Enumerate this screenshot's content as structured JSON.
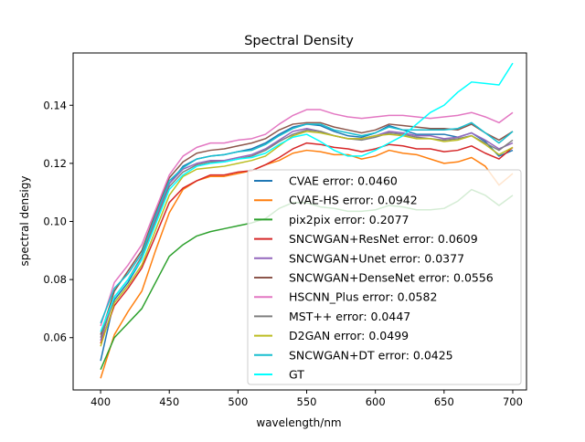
{
  "chart_data": {
    "type": "line",
    "title": "Spectral Density",
    "xlabel": "wavelength/nm",
    "ylabel": "spectral densigy",
    "xlim": [
      380,
      710
    ],
    "ylim": [
      0.042,
      0.158
    ],
    "x_ticks": [
      400,
      450,
      500,
      550,
      600,
      650,
      700
    ],
    "y_ticks": [
      0.06,
      0.08,
      0.1,
      0.12,
      0.14
    ],
    "x_tick_labels": [
      "400",
      "450",
      "500",
      "550",
      "600",
      "650",
      "700"
    ],
    "y_tick_labels": [
      "0.06",
      "0.08",
      "0.10",
      "0.12",
      "0.14"
    ],
    "grid": false,
    "legend_position": "lower-right",
    "x": [
      400,
      410,
      420,
      430,
      440,
      450,
      460,
      470,
      480,
      490,
      500,
      510,
      520,
      530,
      540,
      550,
      560,
      570,
      580,
      590,
      600,
      610,
      620,
      630,
      640,
      650,
      660,
      670,
      680,
      690,
      700
    ],
    "series": [
      {
        "name": "CVAE error: 0.0460",
        "color": "#1f77b4",
        "values": [
          0.052,
          0.073,
          0.079,
          0.087,
          0.1,
          0.113,
          0.119,
          0.1215,
          0.1225,
          0.123,
          0.124,
          0.125,
          0.127,
          0.13,
          0.1325,
          0.1335,
          0.133,
          0.131,
          0.1295,
          0.129,
          0.1305,
          0.133,
          0.1315,
          0.13,
          0.13,
          0.13,
          0.129,
          0.1305,
          0.1275,
          0.1225,
          0.1245
        ]
      },
      {
        "name": "CVAE-HS error: 0.0942",
        "color": "#ff7f0e",
        "values": [
          0.046,
          0.061,
          0.069,
          0.076,
          0.09,
          0.103,
          0.111,
          0.114,
          0.1155,
          0.1155,
          0.1165,
          0.1175,
          0.1195,
          0.121,
          0.1235,
          0.1245,
          0.124,
          0.123,
          0.123,
          0.1215,
          0.1225,
          0.1245,
          0.1235,
          0.123,
          0.1215,
          0.12,
          0.1205,
          0.122,
          0.119,
          0.1125,
          0.1165
        ]
      },
      {
        "name": "pix2pix error: 0.2077",
        "color": "#2ca02c",
        "values": [
          0.049,
          0.06,
          0.065,
          0.07,
          0.079,
          0.088,
          0.092,
          0.095,
          0.0965,
          0.0975,
          0.0985,
          0.0995,
          0.101,
          0.1045,
          0.1065,
          0.1065,
          0.105,
          0.1045,
          0.1035,
          0.1035,
          0.104,
          0.1055,
          0.105,
          0.104,
          0.104,
          0.1045,
          0.107,
          0.111,
          0.109,
          0.1055,
          0.109
        ]
      },
      {
        "name": "SNCWGAN+ResNet error: 0.0609",
        "color": "#d62728",
        "values": [
          0.058,
          0.071,
          0.077,
          0.084,
          0.095,
          0.1065,
          0.1115,
          0.114,
          0.116,
          0.116,
          0.117,
          0.1175,
          0.1195,
          0.122,
          0.125,
          0.127,
          0.1265,
          0.1255,
          0.125,
          0.124,
          0.125,
          0.1265,
          0.126,
          0.125,
          0.125,
          0.124,
          0.1245,
          0.126,
          0.1235,
          0.1215,
          0.1255
        ]
      },
      {
        "name": "SNCWGAN+Unet error: 0.0377",
        "color": "#9467bd",
        "values": [
          0.059,
          0.074,
          0.08,
          0.088,
          0.101,
          0.113,
          0.118,
          0.12,
          0.121,
          0.121,
          0.122,
          0.123,
          0.125,
          0.128,
          0.131,
          0.132,
          0.131,
          0.1295,
          0.1285,
          0.1285,
          0.1295,
          0.131,
          0.1305,
          0.1295,
          0.1295,
          0.1285,
          0.129,
          0.1305,
          0.128,
          0.125,
          0.127
        ]
      },
      {
        "name": "SNCWGAN+DenseNet error: 0.0556",
        "color": "#8c564b",
        "values": [
          0.061,
          0.076,
          0.083,
          0.09,
          0.103,
          0.115,
          0.1205,
          0.1235,
          0.1245,
          0.125,
          0.126,
          0.127,
          0.1285,
          0.1315,
          0.1335,
          0.134,
          0.134,
          0.1325,
          0.1315,
          0.1305,
          0.1315,
          0.1335,
          0.133,
          0.1325,
          0.132,
          0.132,
          0.1315,
          0.1335,
          0.1305,
          0.128,
          0.131
        ]
      },
      {
        "name": "HSCNN_Plus error: 0.0582",
        "color": "#e377c2",
        "values": [
          0.064,
          0.079,
          0.085,
          0.092,
          0.104,
          0.116,
          0.1225,
          0.1255,
          0.127,
          0.127,
          0.128,
          0.1285,
          0.13,
          0.1335,
          0.1365,
          0.1385,
          0.1385,
          0.137,
          0.136,
          0.1355,
          0.136,
          0.1365,
          0.1365,
          0.136,
          0.1355,
          0.136,
          0.1365,
          0.1375,
          0.136,
          0.134,
          0.1375
        ]
      },
      {
        "name": "MST++ error: 0.0447",
        "color": "#7f7f7f",
        "values": [
          0.06,
          0.074,
          0.08,
          0.088,
          0.1,
          0.112,
          0.117,
          0.1195,
          0.1205,
          0.1205,
          0.1215,
          0.1225,
          0.1245,
          0.1275,
          0.13,
          0.1315,
          0.131,
          0.1295,
          0.1285,
          0.128,
          0.129,
          0.1305,
          0.13,
          0.129,
          0.1285,
          0.128,
          0.1285,
          0.1295,
          0.127,
          0.1245,
          0.128
        ]
      },
      {
        "name": "D2GAN error: 0.0499",
        "color": "#bcbd22",
        "values": [
          0.057,
          0.072,
          0.078,
          0.085,
          0.097,
          0.109,
          0.1155,
          0.118,
          0.1185,
          0.119,
          0.12,
          0.121,
          0.1225,
          0.126,
          0.1295,
          0.131,
          0.1305,
          0.1295,
          0.1285,
          0.1285,
          0.1295,
          0.13,
          0.1295,
          0.1285,
          0.1285,
          0.1275,
          0.128,
          0.1295,
          0.1265,
          0.123,
          0.1255
        ]
      },
      {
        "name": "SNCWGAN+DT error: 0.0425",
        "color": "#17becf",
        "values": [
          0.065,
          0.077,
          0.082,
          0.089,
          0.102,
          0.114,
          0.1185,
          0.1215,
          0.1225,
          0.123,
          0.124,
          0.1245,
          0.1265,
          0.1295,
          0.132,
          0.1335,
          0.1335,
          0.1315,
          0.1305,
          0.1295,
          0.1305,
          0.1325,
          0.1315,
          0.1315,
          0.1315,
          0.1315,
          0.132,
          0.134,
          0.1305,
          0.127,
          0.131
        ]
      },
      {
        "name": "GT",
        "color": "#00ffff",
        "values": [
          0.062,
          0.074,
          0.08,
          0.087,
          0.099,
          0.111,
          0.116,
          0.119,
          0.12,
          0.1205,
          0.1215,
          0.122,
          0.1235,
          0.1265,
          0.129,
          0.13,
          0.1275,
          0.1245,
          0.1225,
          0.1225,
          0.1245,
          0.127,
          0.1295,
          0.1335,
          0.1375,
          0.14,
          0.1445,
          0.148,
          0.1475,
          0.147,
          0.1545
        ]
      }
    ]
  }
}
